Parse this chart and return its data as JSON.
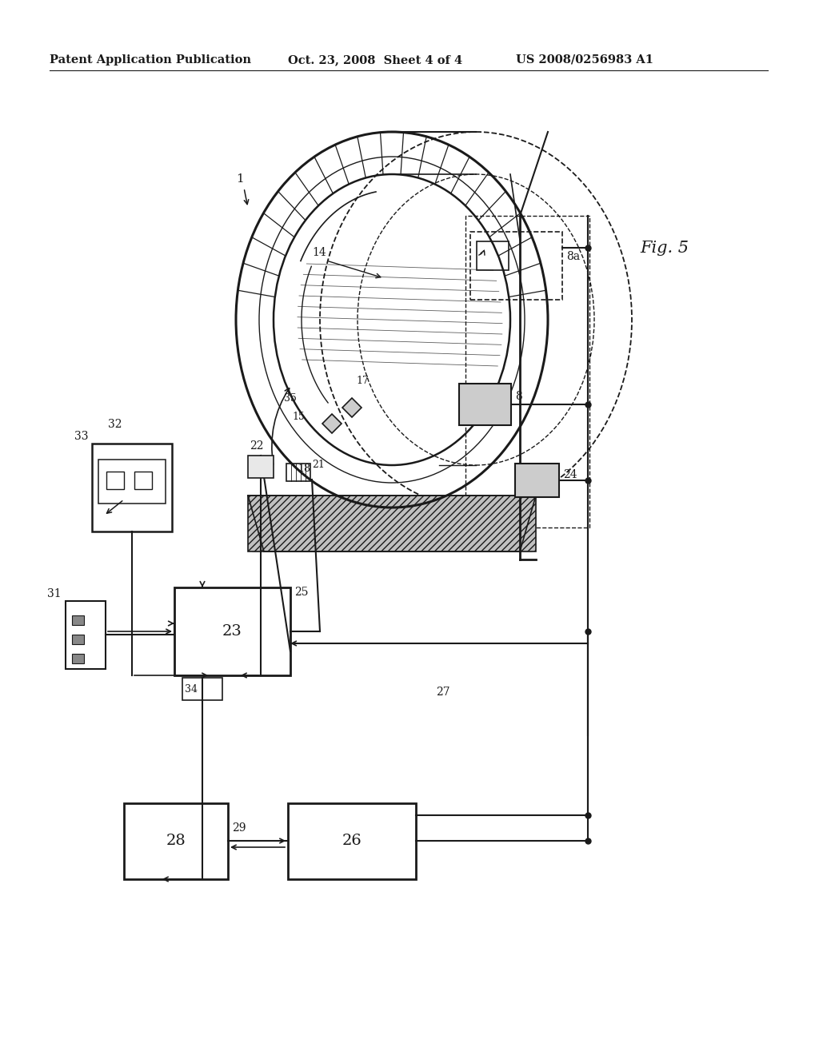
{
  "header_left": "Patent Application Publication",
  "header_center": "Oct. 23, 2008  Sheet 4 of 4",
  "header_right": "US 2008/0256983 A1",
  "fig_label": "Fig. 5",
  "background_color": "#ffffff",
  "line_color": "#1a1a1a",
  "header_fontsize": 11,
  "label_fontsize": 10
}
